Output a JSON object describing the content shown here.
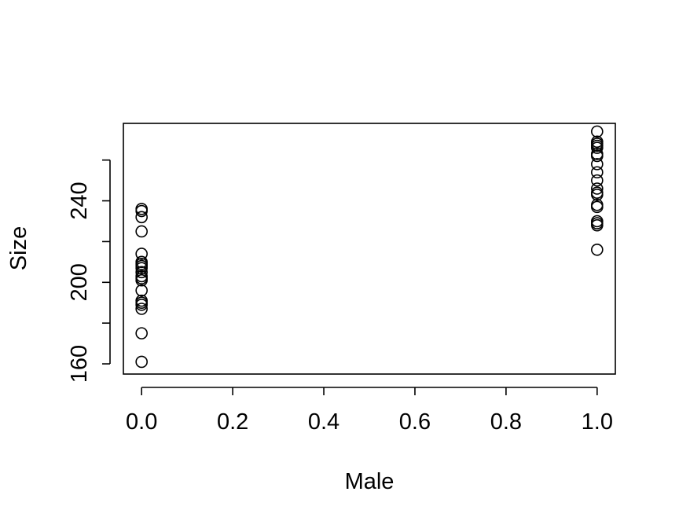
{
  "chart_data": {
    "type": "scatter",
    "title": "",
    "xlabel": "Male",
    "ylabel": "Size",
    "xlim": [
      -0.04,
      1.04
    ],
    "ylim": [
      155,
      278
    ],
    "x_ticks": [
      0.0,
      0.2,
      0.4,
      0.6,
      0.8,
      1.0
    ],
    "x_tick_labels": [
      "0.0",
      "0.2",
      "0.4",
      "0.6",
      "0.8",
      "1.0"
    ],
    "y_ticks": [
      160,
      180,
      200,
      220,
      240,
      260
    ],
    "y_tick_labels": [
      "160",
      "",
      "200",
      "",
      "240",
      ""
    ],
    "grid": false,
    "legend": "none",
    "marker": "open-circle",
    "point_color": "#000000",
    "points": [
      {
        "x": 0,
        "y": 161
      },
      {
        "x": 0,
        "y": 175
      },
      {
        "x": 0,
        "y": 187
      },
      {
        "x": 0,
        "y": 189
      },
      {
        "x": 0,
        "y": 190
      },
      {
        "x": 0,
        "y": 191
      },
      {
        "x": 0,
        "y": 196
      },
      {
        "x": 0,
        "y": 201
      },
      {
        "x": 0,
        "y": 202
      },
      {
        "x": 0,
        "y": 203
      },
      {
        "x": 0,
        "y": 205
      },
      {
        "x": 0,
        "y": 207
      },
      {
        "x": 0,
        "y": 208
      },
      {
        "x": 0,
        "y": 209
      },
      {
        "x": 0,
        "y": 210
      },
      {
        "x": 0,
        "y": 214
      },
      {
        "x": 0,
        "y": 225
      },
      {
        "x": 0,
        "y": 232
      },
      {
        "x": 0,
        "y": 235
      },
      {
        "x": 0,
        "y": 236
      },
      {
        "x": 1,
        "y": 216
      },
      {
        "x": 1,
        "y": 228
      },
      {
        "x": 1,
        "y": 229
      },
      {
        "x": 1,
        "y": 230
      },
      {
        "x": 1,
        "y": 237
      },
      {
        "x": 1,
        "y": 238
      },
      {
        "x": 1,
        "y": 243
      },
      {
        "x": 1,
        "y": 244
      },
      {
        "x": 1,
        "y": 246
      },
      {
        "x": 1,
        "y": 250
      },
      {
        "x": 1,
        "y": 254
      },
      {
        "x": 1,
        "y": 258
      },
      {
        "x": 1,
        "y": 262
      },
      {
        "x": 1,
        "y": 263
      },
      {
        "x": 1,
        "y": 266
      },
      {
        "x": 1,
        "y": 267
      },
      {
        "x": 1,
        "y": 268
      },
      {
        "x": 1,
        "y": 269
      },
      {
        "x": 1,
        "y": 274
      }
    ]
  }
}
